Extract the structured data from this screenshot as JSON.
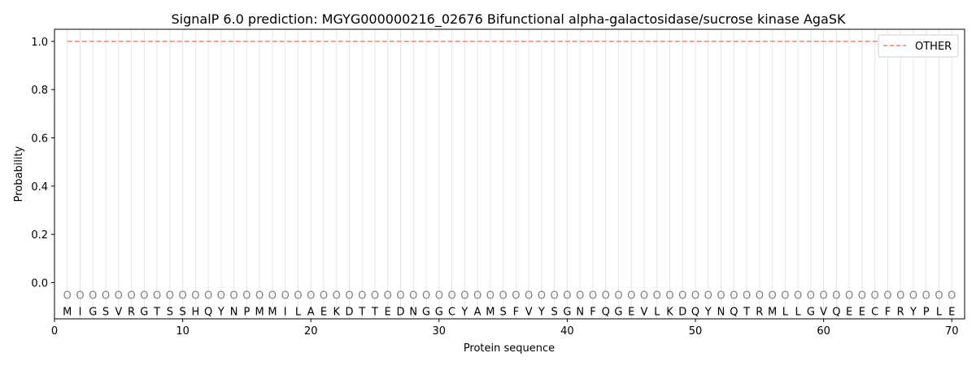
{
  "chart_data": {
    "type": "line",
    "title": "SignalP 6.0 prediction: MGYG000000216_02676 Bifunctional alpha-galactosidase/sucrose kinase AgaSK",
    "xlabel": "Protein sequence",
    "ylabel": "Probability",
    "xlim": [
      0,
      71
    ],
    "ylim": [
      -0.15,
      1.05
    ],
    "x_ticks": [
      0,
      10,
      20,
      30,
      40,
      50,
      60,
      70
    ],
    "y_ticks": [
      0.0,
      0.2,
      0.4,
      0.6,
      0.8,
      1.0
    ],
    "x_tick_labels": [
      "0",
      "10",
      "20",
      "30",
      "40",
      "50",
      "60",
      "70"
    ],
    "y_tick_labels": [
      "0.0",
      "0.2",
      "0.4",
      "0.6",
      "0.8",
      "1.0"
    ],
    "sequence": [
      "M",
      "I",
      "G",
      "S",
      "V",
      "R",
      "G",
      "T",
      "S",
      "S",
      "H",
      "Q",
      "Y",
      "N",
      "P",
      "M",
      "M",
      "I",
      "L",
      "A",
      "E",
      "K",
      "D",
      "T",
      "T",
      "E",
      "D",
      "N",
      "G",
      "G",
      "C",
      "Y",
      "A",
      "M",
      "S",
      "F",
      "V",
      "Y",
      "S",
      "G",
      "N",
      "F",
      "Q",
      "G",
      "E",
      "V",
      "L",
      "K",
      "D",
      "Q",
      "Y",
      "N",
      "Q",
      "T",
      "R",
      "M",
      "L",
      "L",
      "G",
      "V",
      "Q",
      "E",
      "E",
      "C",
      "F",
      "R",
      "Y",
      "P",
      "L",
      "E"
    ],
    "region_label_per_residue": "O",
    "series": [
      {
        "name": "OTHER",
        "color": "#f08080",
        "style": "dashed",
        "x_start": 1,
        "x_end": 70,
        "value": 1.0
      }
    ],
    "legend_position": "upper-right",
    "grid": "vertical lines at each residue"
  }
}
